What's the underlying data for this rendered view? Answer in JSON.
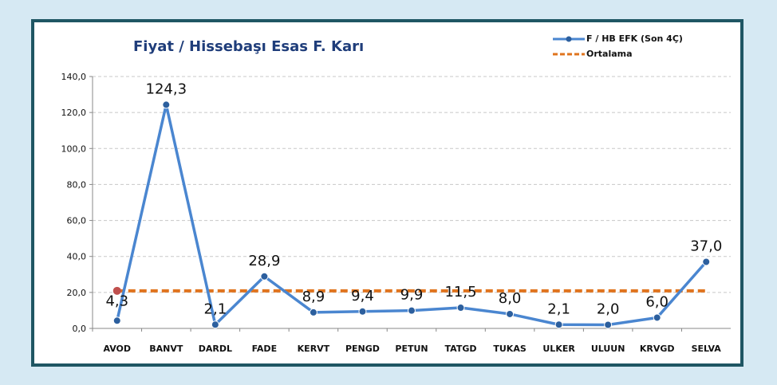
{
  "chart_data": {
    "type": "line",
    "title": "Fiyat / Hissebaşı Esas F. Karı",
    "categories": [
      "AVOD",
      "BANVT",
      "DARDL",
      "FADE",
      "KERVT",
      "PENGD",
      "PETUN",
      "TATGD",
      "TUKAS",
      "ULKER",
      "ULUUN",
      "KRVGD",
      "SELVA"
    ],
    "series": [
      {
        "name": "F / HB EFK (Son 4Ç)",
        "values": [
          4.3,
          124.3,
          2.1,
          28.9,
          8.9,
          9.4,
          9.9,
          11.5,
          8.0,
          2.1,
          2.0,
          6.0,
          37.0
        ],
        "labels": [
          "4,3",
          "124,3",
          "2,1",
          "28,9",
          "8,9",
          "9,4",
          "9,9",
          "11,5",
          "8,0",
          "2,1",
          "2,0",
          "6,0",
          "37,0"
        ],
        "color": "#4a86d0"
      },
      {
        "name": "Ortalama",
        "value": 20.9,
        "color": "#e0741e",
        "style": "dashed"
      }
    ],
    "highlight_point": {
      "category": "AVOD",
      "value": 20.9,
      "color": "#c0504d"
    },
    "ylim": [
      0,
      140
    ],
    "yticks": [
      0,
      20,
      40,
      60,
      80,
      100,
      120,
      140
    ],
    "ytick_labels": [
      "0,0",
      "20,0",
      "40,0",
      "60,0",
      "80,0",
      "100,0",
      "120,0",
      "140,0"
    ],
    "grid": true,
    "legend_position": "top-right",
    "xlabel": "",
    "ylabel": ""
  },
  "colors": {
    "background": "#d6e9f3",
    "frame": "#1f5663",
    "title": "#1f3d7a",
    "grid": "#c8c8c8"
  }
}
